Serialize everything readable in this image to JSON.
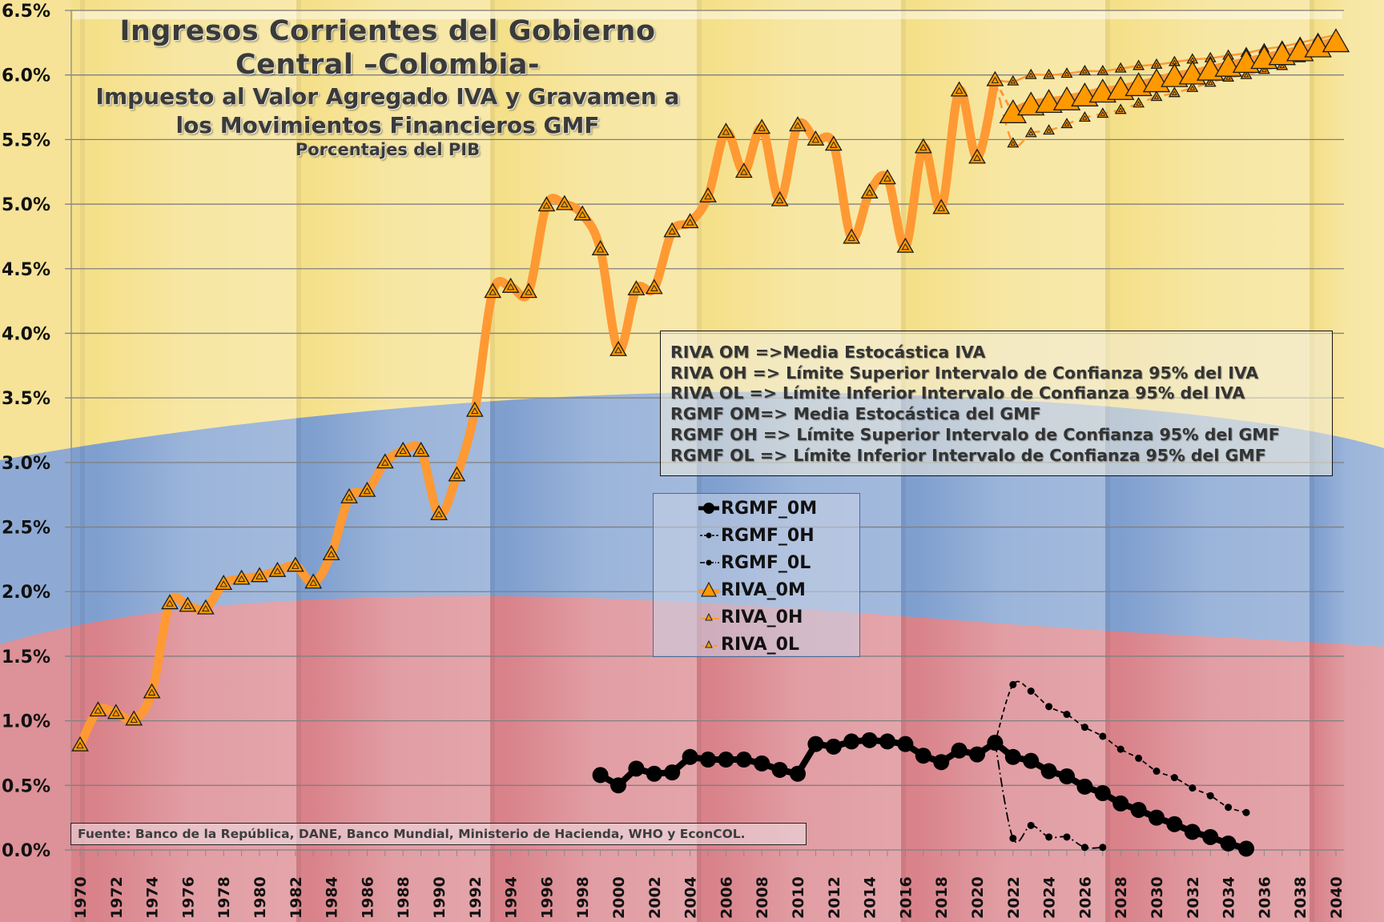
{
  "header": {
    "title_line1": "Ingresos Corrientes del Gobierno",
    "title_line2": "Central –Colombia-",
    "subtitle_line1": "Impuesto al Valor Agregado IVA y Gravamen a",
    "subtitle_line2": "los Movimientos Financieros GMF",
    "units": "Porcentajes del PIB"
  },
  "notes": [
    "RIVA OM =>Media Estocástica IVA",
    "RIVA OH => Límite Superior Intervalo de Confianza 95% del IVA",
    "RIVA OL => Límite Inferior Intervalo de Confianza 95% del IVA",
    "RGMF OM=> Media Estocástica del GMF",
    "RGMF OH => Límite Superior Intervalo de Confianza 95% del GMF",
    "RGMF OL => Límite Inferior Intervalo de Confianza 95% del GMF"
  ],
  "source": "Fuente: Banco de la República, DANE, Banco Mundial, Ministerio de Hacienda, WHO y EconCOL.",
  "colors": {
    "iva": "#ff9933",
    "iva_marker": "#ff9900",
    "gmf": "#000000",
    "flag_yellow": "#f5e08a",
    "flag_blue": "#7f9fcf",
    "flag_red": "#d9828a"
  },
  "chart_data": {
    "type": "line",
    "title": "Ingresos Corrientes del Gobierno Central –Colombia- Impuesto al Valor Agregado IVA y Gravamen a los Movimientos Financieros GMF",
    "subtitle": "Porcentajes del PIB",
    "xlabel": "",
    "ylabel": "",
    "xlim": [
      1970,
      2040
    ],
    "ylim": [
      0,
      6.5
    ],
    "y_ticks": [
      "0.0%",
      "0.5%",
      "1.0%",
      "1.5%",
      "2.0%",
      "2.5%",
      "3.0%",
      "3.5%",
      "4.0%",
      "4.5%",
      "5.0%",
      "5.5%",
      "6.0%",
      "6.5%"
    ],
    "x_ticks": [
      "1970",
      "1972",
      "1974",
      "1976",
      "1978",
      "1980",
      "1982",
      "1984",
      "1986",
      "1988",
      "1990",
      "1992",
      "1994",
      "1996",
      "1998",
      "2000",
      "2002",
      "2004",
      "2006",
      "2008",
      "2010",
      "2012",
      "2014",
      "2016",
      "2018",
      "2020",
      "2022",
      "2024",
      "2026",
      "2028",
      "2030",
      "2032",
      "2034",
      "2036",
      "2038",
      "2040"
    ],
    "grid": true,
    "legend_position": "center",
    "legend": [
      "RGMF_0M",
      "RGMF_0H",
      "RGMF_0L",
      "RIVA_0M",
      "RIVA_0H",
      "RIVA_0L"
    ],
    "series": [
      {
        "name": "RGMF_0M",
        "style": "solid-circle-large",
        "start": 1999,
        "values": [
          0.58,
          0.5,
          0.63,
          0.59,
          0.6,
          0.72,
          0.7,
          0.7,
          0.7,
          0.67,
          0.62,
          0.59,
          0.82,
          0.8,
          0.84,
          0.85,
          0.84,
          0.82,
          0.73,
          0.68,
          0.77,
          0.74,
          0.83,
          0.72,
          0.69,
          0.61,
          0.57,
          0.49,
          0.44,
          0.36,
          0.31,
          0.25,
          0.2,
          0.14,
          0.1,
          0.05,
          0.01
        ]
      },
      {
        "name": "RGMF_0H",
        "style": "dash-circle-small",
        "start": 2021,
        "values": [
          0.83,
          1.28,
          1.23,
          1.11,
          1.05,
          0.95,
          0.88,
          0.78,
          0.71,
          0.61,
          0.56,
          0.48,
          0.42,
          0.33,
          0.29
        ]
      },
      {
        "name": "RGMF_0L",
        "style": "dashdot-circle-small",
        "start": 2021,
        "values": [
          0.83,
          0.09,
          0.19,
          0.1,
          0.1,
          0.02,
          0.02
        ]
      },
      {
        "name": "RIVA_0M",
        "style": "thick-triangle",
        "start": 1970,
        "values": [
          0.81,
          1.08,
          1.06,
          1.01,
          1.22,
          1.91,
          1.89,
          1.87,
          2.06,
          2.1,
          2.12,
          2.16,
          2.2,
          2.07,
          2.29,
          2.73,
          2.78,
          3.0,
          3.09,
          3.09,
          2.6,
          2.9,
          3.4,
          4.32,
          4.36,
          4.32,
          4.99,
          5.0,
          4.92,
          4.65,
          3.87,
          4.34,
          4.35,
          4.79,
          4.86,
          5.06,
          5.56,
          5.25,
          5.59,
          5.03,
          5.61,
          5.5,
          5.46,
          4.74,
          5.09,
          5.2,
          4.67,
          5.44,
          4.97,
          5.88,
          5.36,
          5.96,
          5.7,
          5.76,
          5.78,
          5.8,
          5.83,
          5.86,
          5.88,
          5.91,
          5.94,
          5.98,
          6.0,
          6.03,
          6.06,
          6.09,
          6.12,
          6.15,
          6.18,
          6.21,
          6.25
        ]
      },
      {
        "name": "RIVA_0H",
        "style": "thin-triangle-small",
        "start": 2021,
        "values": [
          5.96,
          5.95,
          6.0,
          6.0,
          6.01,
          6.03,
          6.03,
          6.05,
          6.07,
          6.08,
          6.1,
          6.12,
          6.13,
          6.15,
          6.17,
          6.2,
          6.22,
          6.25,
          6.28,
          6.31
        ]
      },
      {
        "name": "RIVA_0L",
        "style": "dashed-triangle-small",
        "start": 2021,
        "values": [
          5.96,
          5.47,
          5.55,
          5.57,
          5.62,
          5.67,
          5.7,
          5.73,
          5.78,
          5.83,
          5.86,
          5.9,
          5.94,
          5.98,
          6.0,
          6.04,
          6.07,
          6.13,
          6.17,
          6.21
        ]
      }
    ]
  }
}
